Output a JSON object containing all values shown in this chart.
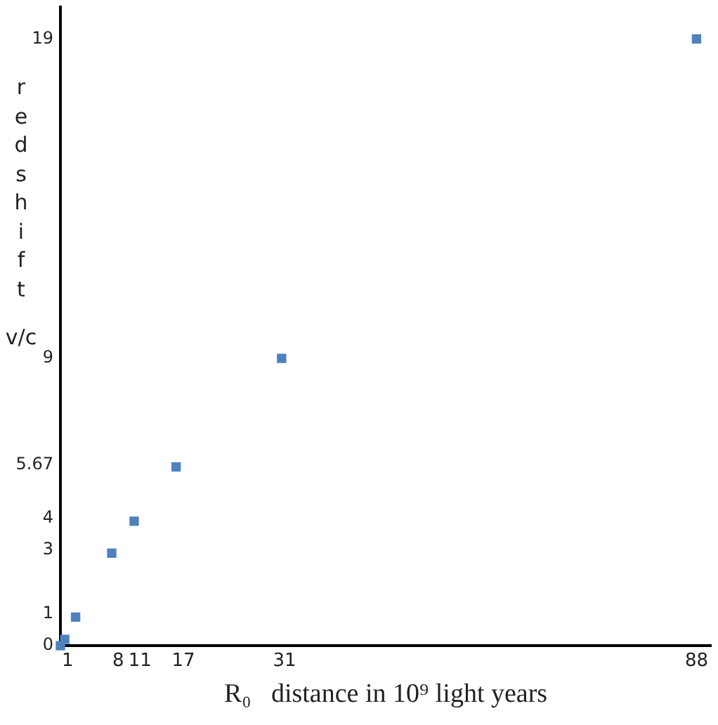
{
  "chart_data": {
    "type": "scatter",
    "xlabel": "R₀   distance in 10⁹ light years",
    "ylabel": "redshift v/c",
    "x": [
      0,
      0.6,
      2.1,
      7.1,
      10.2,
      16,
      30.6,
      88
    ],
    "series": [
      {
        "color": "#4f81bd",
        "values": [
          0,
          0.2,
          0.9,
          2.9,
          3.9,
          5.6,
          9,
          19
        ]
      }
    ],
    "xlim": [
      0,
      90
    ],
    "xticks": [
      1,
      8,
      11,
      17,
      31,
      88
    ],
    "ylim": [
      0,
      20
    ],
    "yticks": [
      0,
      1,
      3,
      4,
      5.67,
      9,
      19
    ],
    "marker": "square",
    "grid": false,
    "legend": false
  }
}
